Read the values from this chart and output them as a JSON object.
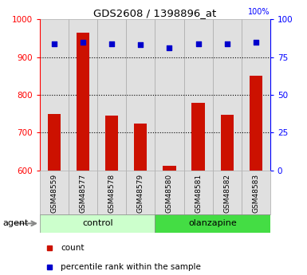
{
  "title": "GDS2608 / 1398896_at",
  "samples": [
    "GSM48559",
    "GSM48577",
    "GSM48578",
    "GSM48579",
    "GSM48580",
    "GSM48581",
    "GSM48582",
    "GSM48583"
  ],
  "counts": [
    750,
    965,
    745,
    725,
    612,
    778,
    748,
    850
  ],
  "percentile_ranks": [
    84,
    85,
    84,
    83,
    81,
    84,
    84,
    85
  ],
  "groups": [
    "control",
    "control",
    "control",
    "control",
    "olanzapine",
    "olanzapine",
    "olanzapine",
    "olanzapine"
  ],
  "control_color_light": "#ccffcc",
  "control_color": "#ccffcc",
  "olanzapine_color": "#44dd44",
  "bar_color": "#cc1100",
  "dot_color": "#0000cc",
  "sample_box_color": "#e0e0e0",
  "ylim_left": [
    600,
    1000
  ],
  "ylim_right": [
    0,
    100
  ],
  "yticks_left": [
    600,
    700,
    800,
    900,
    1000
  ],
  "yticks_right": [
    0,
    25,
    50,
    75,
    100
  ],
  "grid_values": [
    700,
    800,
    900
  ],
  "legend_count_label": "count",
  "legend_pct_label": "percentile rank within the sample",
  "group_label": "agent"
}
